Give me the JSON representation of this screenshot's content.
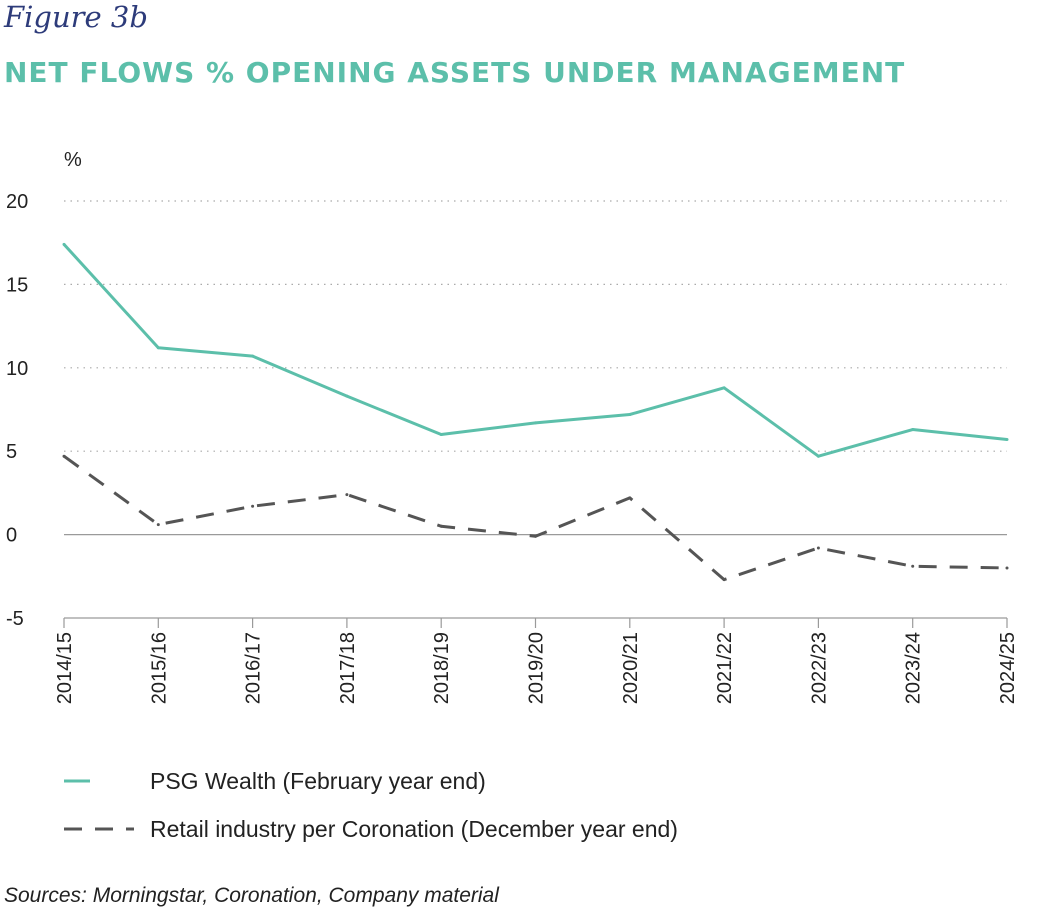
{
  "figure_label": "Figure 3b",
  "title": "NET FLOWS % OPENING ASSETS UNDER MANAGEMENT",
  "sources": "Sources: Morningstar, Coronation, Company material",
  "colors": {
    "psg": "#5cbfaa",
    "retail": "#555555",
    "grid": "#aaaaaa",
    "title": "#5cbfaa",
    "figure_label": "#2d3b7a"
  },
  "chart_data": {
    "type": "line",
    "title": "NET FLOWS % OPENING ASSETS UNDER MANAGEMENT",
    "ylabel": "%",
    "xlabel": "",
    "ylim": [
      -5,
      20
    ],
    "yticks": [
      20,
      15,
      10,
      5,
      0,
      -5
    ],
    "ytick_labels": [
      "20",
      "15",
      "10",
      "5",
      "0",
      "-5"
    ],
    "categories": [
      "2014/15",
      "2015/16",
      "2016/17",
      "2017/18",
      "2018/19",
      "2019/20",
      "2020/21",
      "2021/22",
      "2022/23",
      "2023/24",
      "2024/25"
    ],
    "grid": "horizontal dotted",
    "series": [
      {
        "name": "PSG Wealth (February year end)",
        "style": "solid",
        "values": [
          17.4,
          11.2,
          10.7,
          8.3,
          6.0,
          6.7,
          7.2,
          8.8,
          4.7,
          6.3,
          5.7
        ]
      },
      {
        "name": "Retail industry per Coronation (December year end)",
        "style": "dashed",
        "values": [
          4.7,
          0.6,
          1.7,
          2.4,
          0.5,
          -0.1,
          2.2,
          -2.7,
          -0.8,
          -1.9,
          -2.0
        ]
      }
    ],
    "legend_position": "bottom-left"
  }
}
